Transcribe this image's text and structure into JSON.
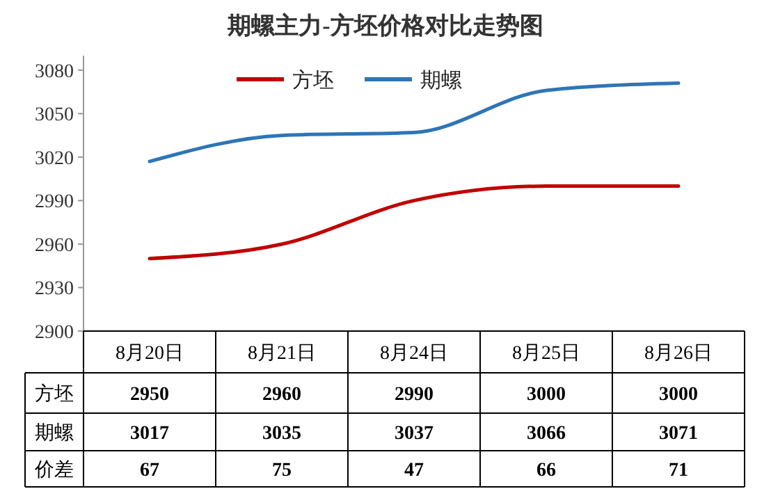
{
  "chart_data": {
    "type": "line",
    "title": "期螺主力-方坯价格对比走势图",
    "categories": [
      "8月20日",
      "8月21日",
      "8月24日",
      "8月25日",
      "8月26日"
    ],
    "series": [
      {
        "name": "方坯",
        "color": "#c00000",
        "values": [
          2950,
          2960,
          2990,
          3000,
          3000
        ]
      },
      {
        "name": "期螺",
        "color": "#2e75b6",
        "values": [
          3017,
          3035,
          3037,
          3066,
          3071
        ]
      }
    ],
    "annotations": [
      "价差",
      "67",
      "75",
      "47",
      "66",
      "71"
    ],
    "ylim": [
      2900,
      3090
    ],
    "yticks": [
      2900,
      2930,
      2960,
      2990,
      3020,
      3050,
      3080
    ],
    "grid": false,
    "legend": "top",
    "data_labels": true,
    "marker": "none",
    "line_style": "solid"
  }
}
